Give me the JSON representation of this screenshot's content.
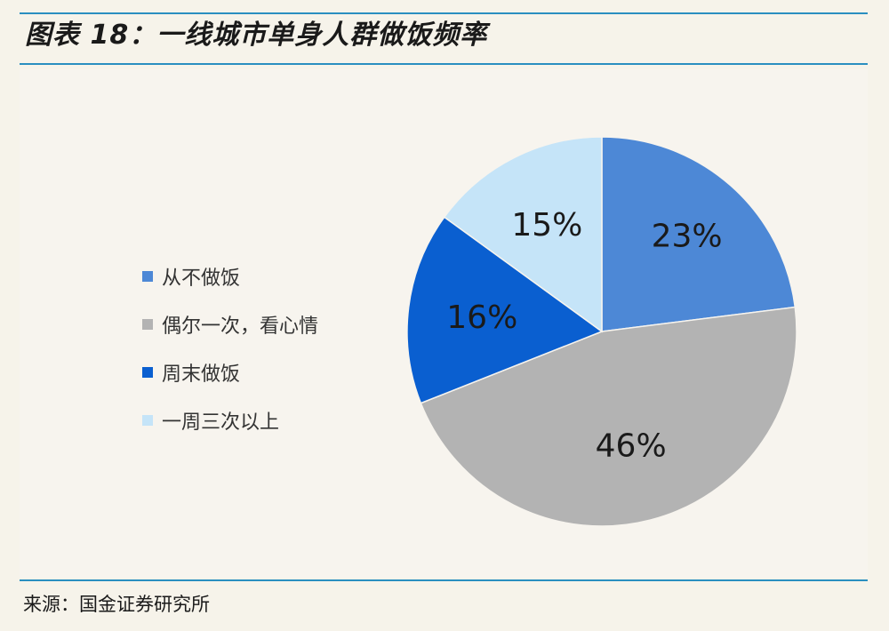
{
  "title": "图表 18：一线城市单身人群做饭频率",
  "source": "来源：国金证券研究所",
  "chart_data": {
    "type": "pie",
    "categories": [
      "从不做饭",
      "偶尔一次，看心情",
      "周末做饭",
      "一周三次以上"
    ],
    "values": [
      23,
      46,
      16,
      15
    ],
    "labels": [
      "23%",
      "46%",
      "16%",
      "15%"
    ],
    "colors": [
      "#4d88d6",
      "#b3b3b3",
      "#0a5fd0",
      "#c5e4f8"
    ],
    "legend_position": "left"
  }
}
